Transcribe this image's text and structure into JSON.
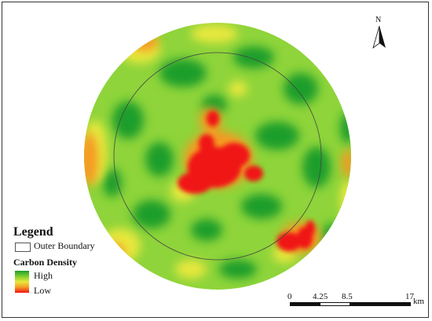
{
  "map": {
    "north_label": "N",
    "legend": {
      "title": "Legend",
      "boundary_label": "Outer Boundary",
      "density_title": "Carbon Density",
      "high_label": "High",
      "low_label": "Low"
    },
    "scalebar": {
      "ticks": [
        "0",
        "4.25",
        "8.5",
        "17"
      ],
      "unit": "km"
    },
    "colors": {
      "high": "#1e9e2a",
      "mid_high": "#7ccd2c",
      "mid": "#e8e83c",
      "mid_low": "#f59a24",
      "low": "#f01414",
      "boundary": "#444444"
    }
  }
}
